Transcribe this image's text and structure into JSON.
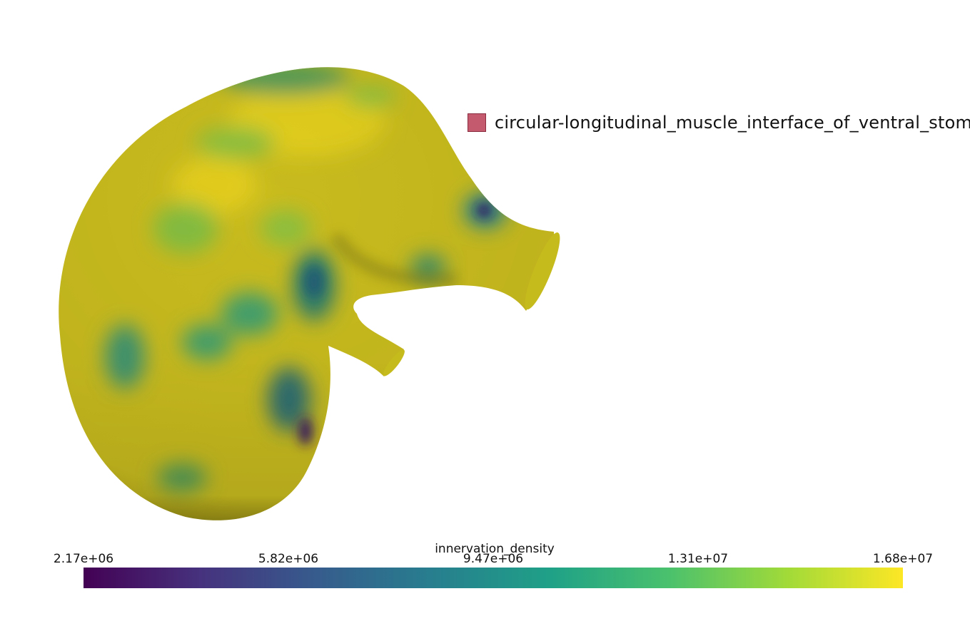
{
  "legend": {
    "label": "circular-longitudinal_muscle_interface_of_ventral_stomach",
    "swatch_color": "#c45a6e"
  },
  "colorbar": {
    "title": "innervation_density",
    "ticks": [
      "2.17e+06",
      "5.82e+06",
      "9.47e+06",
      "1.31e+07",
      "1.68e+07"
    ],
    "colormap": "viridis",
    "range": [
      2170000,
      16800000
    ]
  },
  "colors": {
    "viridis_stops": [
      "#440154",
      "#46327e",
      "#365c8d",
      "#277f8e",
      "#1fa187",
      "#4ac16d",
      "#a0da39",
      "#fde725"
    ]
  }
}
